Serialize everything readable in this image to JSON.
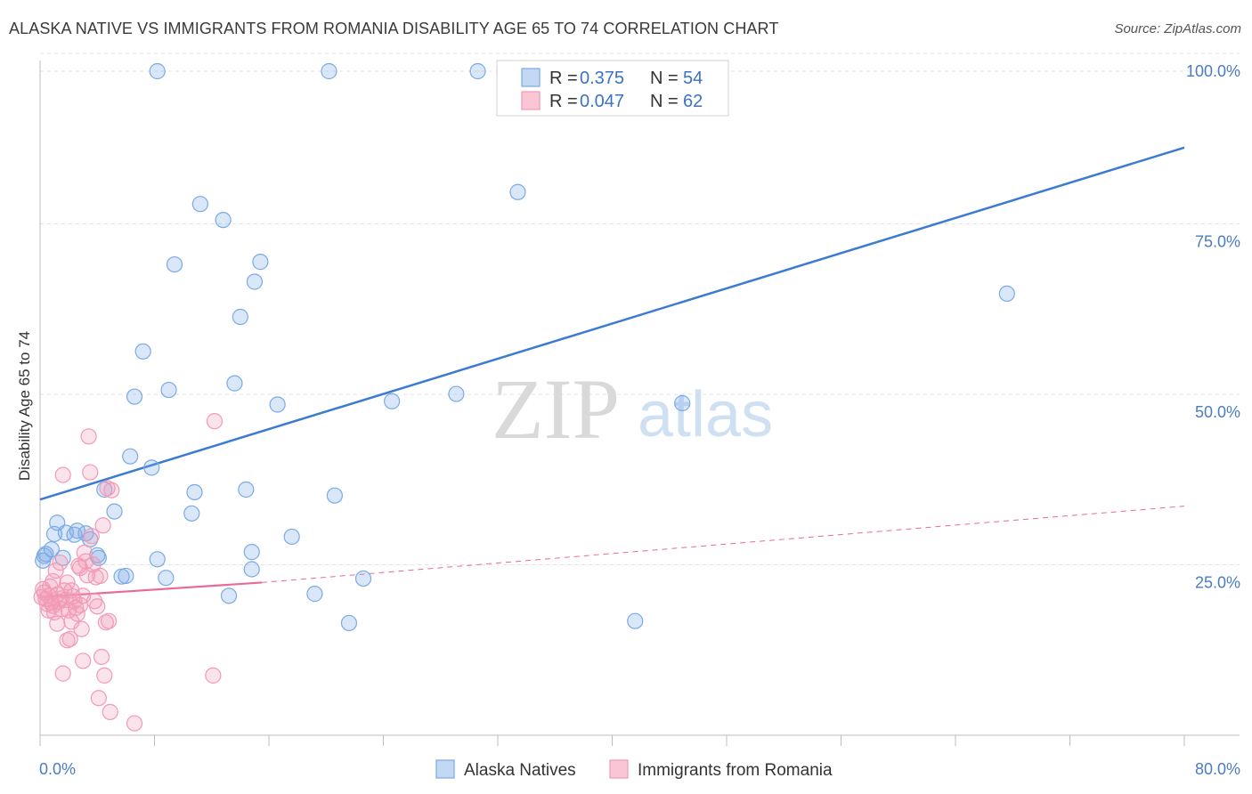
{
  "title": "ALASKA NATIVE VS IMMIGRANTS FROM ROMANIA DISABILITY AGE 65 TO 74 CORRELATION CHART",
  "source": "Source: ZipAtlas.com",
  "watermark": {
    "part1": "ZIP",
    "part2": "atlas"
  },
  "chart_data": {
    "type": "scatter",
    "ylabel": "Disability Age 65 to 74",
    "xlim": [
      0,
      80
    ],
    "ylim": [
      0,
      105
    ],
    "x_tick_labels": [
      "0.0%",
      "80.0%"
    ],
    "y_ticks": [
      25,
      50,
      75,
      100
    ],
    "y_tick_labels": [
      "25.0%",
      "50.0%",
      "75.0%",
      "100.0%"
    ],
    "grid": true,
    "legend_position": "top-center",
    "legend": [
      {
        "r_label": "R =",
        "r_value": "0.375",
        "n_label": "N =",
        "n_value": "54"
      },
      {
        "r_label": "R =",
        "r_value": "0.047",
        "n_label": "N =",
        "n_value": "62"
      }
    ],
    "series": [
      {
        "name": "Alaska Natives",
        "color": "#7aaae6",
        "trend": {
          "x": [
            0,
            80
          ],
          "y": [
            35.5,
            88.5
          ],
          "style": "solid"
        },
        "points": [
          [
            0.2,
            26.3
          ],
          [
            0.4,
            27.3
          ],
          [
            0.8,
            28
          ],
          [
            1.2,
            32
          ],
          [
            1.6,
            26.7
          ],
          [
            1.8,
            30.5
          ],
          [
            2.4,
            30.2
          ],
          [
            3.2,
            30.4
          ],
          [
            3.5,
            29.5
          ],
          [
            4.0,
            27.1
          ],
          [
            4.5,
            37
          ],
          [
            5.2,
            33.7
          ],
          [
            5.7,
            23.9
          ],
          [
            6.0,
            24
          ],
          [
            6.3,
            42
          ],
          [
            6.6,
            51
          ],
          [
            7.2,
            57.8
          ],
          [
            7.8,
            40.3
          ],
          [
            8.2,
            100
          ],
          [
            8.2,
            26.5
          ],
          [
            8.8,
            23.7
          ],
          [
            9.0,
            52
          ],
          [
            9.4,
            70.9
          ],
          [
            10.6,
            33.4
          ],
          [
            10.8,
            36.6
          ],
          [
            11.2,
            80
          ],
          [
            12.8,
            77.6
          ],
          [
            13.2,
            21
          ],
          [
            13.6,
            53
          ],
          [
            14.0,
            63
          ],
          [
            14.4,
            37
          ],
          [
            14.8,
            27.6
          ],
          [
            14.8,
            25
          ],
          [
            15.0,
            68.3
          ],
          [
            15.4,
            71.3
          ],
          [
            16.6,
            49.8
          ],
          [
            17.6,
            29.9
          ],
          [
            19.2,
            21.3
          ],
          [
            20.2,
            100
          ],
          [
            20.6,
            36.1
          ],
          [
            21.6,
            16.9
          ],
          [
            22.6,
            23.6
          ],
          [
            24.6,
            50.3
          ],
          [
            29.1,
            51.4
          ],
          [
            30.6,
            100
          ],
          [
            33.4,
            81.8
          ],
          [
            41.6,
            17.2
          ],
          [
            42.6,
            100
          ],
          [
            44.9,
            50
          ],
          [
            67.6,
            66.5
          ],
          [
            0.3,
            27
          ],
          [
            1.0,
            30.3
          ],
          [
            2.6,
            30.8
          ],
          [
            4.1,
            26.7
          ]
        ]
      },
      {
        "name": "Immigrants from Romania",
        "color": "#f29ab6",
        "trend": {
          "x": [
            0,
            15.5
          ],
          "y": [
            20.8,
            23
          ],
          "style": "solid",
          "dashed_to": [
            80,
            34.5
          ]
        },
        "points": [
          [
            0.1,
            20.8
          ],
          [
            0.2,
            22
          ],
          [
            0.3,
            21.5
          ],
          [
            0.4,
            20.5
          ],
          [
            0.5,
            19.8
          ],
          [
            0.6,
            21
          ],
          [
            0.7,
            22.4
          ],
          [
            0.8,
            20
          ],
          [
            0.9,
            19.5
          ],
          [
            1.0,
            18.5
          ],
          [
            1.1,
            24.8
          ],
          [
            1.2,
            21.2
          ],
          [
            1.3,
            20.1
          ],
          [
            1.4,
            26
          ],
          [
            1.5,
            19
          ],
          [
            1.6,
            39.2
          ],
          [
            1.7,
            21.8
          ],
          [
            1.8,
            20.4
          ],
          [
            1.9,
            23
          ],
          [
            2.0,
            18.8
          ],
          [
            2.1,
            14.5
          ],
          [
            2.2,
            17.1
          ],
          [
            2.3,
            20.9
          ],
          [
            2.4,
            20.2
          ],
          [
            2.5,
            19.2
          ],
          [
            2.6,
            18.3
          ],
          [
            2.7,
            25.5
          ],
          [
            2.8,
            19.6
          ],
          [
            2.9,
            16
          ],
          [
            3.0,
            21
          ],
          [
            3.1,
            27.5
          ],
          [
            3.2,
            26.2
          ],
          [
            3.3,
            24.1
          ],
          [
            3.4,
            45
          ],
          [
            3.5,
            39.6
          ],
          [
            3.6,
            30
          ],
          [
            3.7,
            25.7
          ],
          [
            3.8,
            20.2
          ],
          [
            3.9,
            23.8
          ],
          [
            4.0,
            19.4
          ],
          [
            4.1,
            5.6
          ],
          [
            4.2,
            24
          ],
          [
            4.3,
            11.8
          ],
          [
            4.4,
            31.6
          ],
          [
            4.5,
            9
          ],
          [
            4.6,
            17
          ],
          [
            4.7,
            37.2
          ],
          [
            4.8,
            17.2
          ],
          [
            4.9,
            3.5
          ],
          [
            5.0,
            36.9
          ],
          [
            1.6,
            9.3
          ],
          [
            3.0,
            11.2
          ],
          [
            6.6,
            1.8
          ],
          [
            12.2,
            47.3
          ],
          [
            12.1,
            9
          ],
          [
            1.9,
            14.3
          ],
          [
            2.8,
            25.2
          ],
          [
            1.2,
            16.8
          ],
          [
            0.9,
            23.2
          ],
          [
            2.2,
            21.8
          ],
          [
            0.6,
            18.8
          ],
          [
            1.5,
            20.6
          ]
        ]
      }
    ]
  }
}
